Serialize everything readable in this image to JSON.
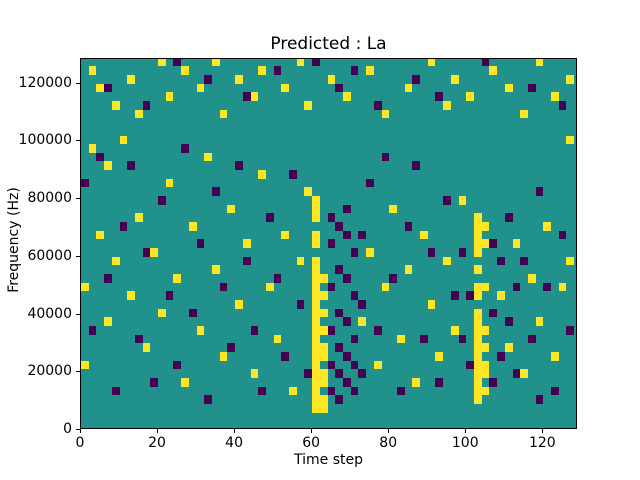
{
  "title": "Predicted : La",
  "xlabel": "Time step",
  "ylabel": "Frequency (Hz)",
  "chart_data": {
    "type": "heatmap",
    "title": "Predicted : La",
    "xlabel": "Time step",
    "ylabel": "Frequency (Hz)",
    "x_range": [
      0,
      129
    ],
    "y_range": [
      0,
      128500
    ],
    "x_ticks": [
      0,
      20,
      40,
      60,
      80,
      100,
      120
    ],
    "y_ticks": [
      0,
      20000,
      40000,
      60000,
      80000,
      100000,
      120000
    ],
    "grid": false,
    "legend": "none",
    "colors": {
      "background": "#21918c",
      "high": "#fde725",
      "low": "#440154"
    },
    "cell_size": {
      "x": 2,
      "y": 3000
    },
    "cells": {
      "yellow": [
        [
          60,
          6000
        ],
        [
          60,
          9000
        ],
        [
          60,
          12000
        ],
        [
          60,
          15000
        ],
        [
          60,
          18000
        ],
        [
          60,
          21000
        ],
        [
          60,
          24000
        ],
        [
          60,
          27000
        ],
        [
          60,
          30000
        ],
        [
          60,
          33000
        ],
        [
          60,
          36000
        ],
        [
          60,
          39000
        ],
        [
          60,
          42000
        ],
        [
          60,
          45000
        ],
        [
          60,
          48000
        ],
        [
          60,
          51000
        ],
        [
          60,
          54000
        ],
        [
          60,
          57000
        ],
        [
          60,
          63000
        ],
        [
          60,
          66000
        ],
        [
          60,
          72000
        ],
        [
          60,
          75000
        ],
        [
          60,
          78000
        ],
        [
          62,
          6000
        ],
        [
          62,
          9000
        ],
        [
          62,
          15000
        ],
        [
          62,
          18000
        ],
        [
          62,
          24000
        ],
        [
          62,
          27000
        ],
        [
          62,
          33000
        ],
        [
          62,
          39000
        ],
        [
          62,
          45000
        ],
        [
          62,
          51000
        ],
        [
          102,
          9000
        ],
        [
          102,
          12000
        ],
        [
          102,
          15000
        ],
        [
          102,
          18000
        ],
        [
          102,
          21000
        ],
        [
          102,
          24000
        ],
        [
          102,
          27000
        ],
        [
          102,
          30000
        ],
        [
          102,
          33000
        ],
        [
          102,
          36000
        ],
        [
          102,
          39000
        ],
        [
          102,
          45000
        ],
        [
          102,
          48000
        ],
        [
          102,
          54000
        ],
        [
          102,
          60000
        ],
        [
          102,
          63000
        ],
        [
          102,
          66000
        ],
        [
          102,
          69000
        ],
        [
          102,
          72000
        ],
        [
          104,
          12000
        ],
        [
          104,
          18000
        ],
        [
          104,
          21000
        ],
        [
          104,
          27000
        ],
        [
          104,
          33000
        ],
        [
          104,
          48000
        ],
        [
          104,
          63000
        ],
        [
          104,
          69000
        ],
        [
          2,
          123000
        ],
        [
          4,
          117000
        ],
        [
          8,
          111000
        ],
        [
          12,
          120000
        ],
        [
          14,
          108000
        ],
        [
          20,
          126000
        ],
        [
          22,
          114000
        ],
        [
          26,
          123000
        ],
        [
          30,
          117000
        ],
        [
          34,
          126000
        ],
        [
          36,
          108000
        ],
        [
          40,
          120000
        ],
        [
          44,
          114000
        ],
        [
          46,
          123000
        ],
        [
          52,
          117000
        ],
        [
          56,
          126000
        ],
        [
          58,
          111000
        ],
        [
          64,
          120000
        ],
        [
          68,
          114000
        ],
        [
          74,
          123000
        ],
        [
          78,
          108000
        ],
        [
          84,
          117000
        ],
        [
          90,
          126000
        ],
        [
          94,
          111000
        ],
        [
          96,
          120000
        ],
        [
          100,
          114000
        ],
        [
          106,
          123000
        ],
        [
          110,
          117000
        ],
        [
          114,
          108000
        ],
        [
          118,
          126000
        ],
        [
          122,
          114000
        ],
        [
          126,
          120000
        ],
        [
          0,
          48000
        ],
        [
          0,
          21000
        ],
        [
          2,
          96000
        ],
        [
          4,
          66000
        ],
        [
          6,
          36000
        ],
        [
          6,
          90000
        ],
        [
          8,
          57000
        ],
        [
          10,
          99000
        ],
        [
          12,
          45000
        ],
        [
          14,
          72000
        ],
        [
          16,
          27000
        ],
        [
          18,
          60000
        ],
        [
          20,
          39000
        ],
        [
          22,
          84000
        ],
        [
          24,
          51000
        ],
        [
          26,
          15000
        ],
        [
          28,
          69000
        ],
        [
          30,
          33000
        ],
        [
          32,
          93000
        ],
        [
          34,
          54000
        ],
        [
          36,
          24000
        ],
        [
          38,
          75000
        ],
        [
          40,
          42000
        ],
        [
          42,
          63000
        ],
        [
          44,
          18000
        ],
        [
          46,
          87000
        ],
        [
          48,
          48000
        ],
        [
          50,
          30000
        ],
        [
          52,
          66000
        ],
        [
          54,
          12000
        ],
        [
          56,
          57000
        ],
        [
          58,
          81000
        ],
        [
          72,
          36000
        ],
        [
          74,
          60000
        ],
        [
          76,
          21000
        ],
        [
          78,
          48000
        ],
        [
          80,
          75000
        ],
        [
          82,
          30000
        ],
        [
          84,
          54000
        ],
        [
          86,
          15000
        ],
        [
          88,
          66000
        ],
        [
          90,
          42000
        ],
        [
          92,
          24000
        ],
        [
          94,
          57000
        ],
        [
          96,
          33000
        ],
        [
          98,
          78000
        ],
        [
          108,
          45000
        ],
        [
          110,
          27000
        ],
        [
          112,
          63000
        ],
        [
          114,
          18000
        ],
        [
          116,
          51000
        ],
        [
          118,
          36000
        ],
        [
          120,
          69000
        ],
        [
          122,
          24000
        ],
        [
          124,
          48000
        ],
        [
          126,
          57000
        ],
        [
          126,
          99000
        ]
      ],
      "purple": [
        [
          64,
          12000
        ],
        [
          64,
          21000
        ],
        [
          64,
          33000
        ],
        [
          64,
          48000
        ],
        [
          64,
          63000
        ],
        [
          64,
          72000
        ],
        [
          66,
          9000
        ],
        [
          66,
          18000
        ],
        [
          66,
          27000
        ],
        [
          66,
          39000
        ],
        [
          66,
          54000
        ],
        [
          66,
          69000
        ],
        [
          68,
          15000
        ],
        [
          68,
          24000
        ],
        [
          68,
          36000
        ],
        [
          68,
          51000
        ],
        [
          68,
          66000
        ],
        [
          68,
          75000
        ],
        [
          70,
          12000
        ],
        [
          70,
          30000
        ],
        [
          70,
          45000
        ],
        [
          70,
          60000
        ],
        [
          70,
          21000
        ],
        [
          72,
          18000
        ],
        [
          72,
          42000
        ],
        [
          72,
          66000
        ],
        [
          100,
          21000
        ],
        [
          100,
          45000
        ],
        [
          106,
          15000
        ],
        [
          106,
          39000
        ],
        [
          106,
          63000
        ],
        [
          108,
          24000
        ],
        [
          108,
          57000
        ],
        [
          110,
          36000
        ],
        [
          110,
          72000
        ],
        [
          112,
          18000
        ],
        [
          112,
          48000
        ],
        [
          98,
          30000
        ],
        [
          98,
          60000
        ],
        [
          6,
          117000
        ],
        [
          16,
          111000
        ],
        [
          24,
          126000
        ],
        [
          32,
          120000
        ],
        [
          42,
          114000
        ],
        [
          50,
          123000
        ],
        [
          60,
          126000
        ],
        [
          66,
          117000
        ],
        [
          76,
          111000
        ],
        [
          86,
          120000
        ],
        [
          92,
          114000
        ],
        [
          104,
          126000
        ],
        [
          116,
          117000
        ],
        [
          124,
          111000
        ],
        [
          70,
          123000
        ],
        [
          0,
          84000
        ],
        [
          2,
          33000
        ],
        [
          4,
          93000
        ],
        [
          6,
          51000
        ],
        [
          8,
          12000
        ],
        [
          10,
          69000
        ],
        [
          12,
          90000
        ],
        [
          14,
          30000
        ],
        [
          16,
          60000
        ],
        [
          18,
          15000
        ],
        [
          20,
          78000
        ],
        [
          22,
          45000
        ],
        [
          24,
          21000
        ],
        [
          26,
          96000
        ],
        [
          28,
          39000
        ],
        [
          30,
          63000
        ],
        [
          32,
          9000
        ],
        [
          34,
          81000
        ],
        [
          36,
          48000
        ],
        [
          38,
          27000
        ],
        [
          40,
          90000
        ],
        [
          42,
          57000
        ],
        [
          44,
          33000
        ],
        [
          46,
          12000
        ],
        [
          48,
          72000
        ],
        [
          50,
          51000
        ],
        [
          52,
          24000
        ],
        [
          54,
          87000
        ],
        [
          56,
          42000
        ],
        [
          58,
          18000
        ],
        [
          74,
          84000
        ],
        [
          76,
          33000
        ],
        [
          78,
          93000
        ],
        [
          80,
          51000
        ],
        [
          82,
          12000
        ],
        [
          84,
          69000
        ],
        [
          86,
          90000
        ],
        [
          88,
          30000
        ],
        [
          90,
          60000
        ],
        [
          92,
          15000
        ],
        [
          94,
          78000
        ],
        [
          96,
          45000
        ],
        [
          114,
          57000
        ],
        [
          116,
          30000
        ],
        [
          118,
          81000
        ],
        [
          120,
          48000
        ],
        [
          122,
          12000
        ],
        [
          124,
          66000
        ],
        [
          126,
          33000
        ],
        [
          118,
          9000
        ]
      ]
    }
  }
}
